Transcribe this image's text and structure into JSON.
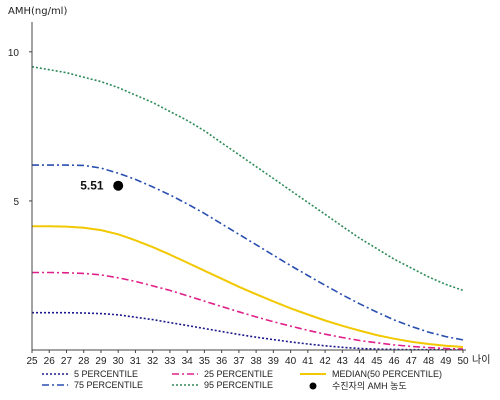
{
  "chart_data": {
    "type": "line",
    "ylabel": "AMH(ng/ml)",
    "xlabel": "나이",
    "xlim": [
      25,
      50
    ],
    "ylim": [
      0,
      11
    ],
    "ytick_labels": [
      "5",
      "10"
    ],
    "x": [
      25,
      26,
      27,
      28,
      29,
      30,
      31,
      32,
      33,
      34,
      35,
      36,
      37,
      38,
      39,
      40,
      41,
      42,
      43,
      44,
      45,
      46,
      47,
      48,
      49,
      50
    ],
    "series": [
      {
        "name": "5 PERCENTILE",
        "color": "#1a1a8c",
        "dash": "2,2",
        "values": [
          1.25,
          1.25,
          1.25,
          1.24,
          1.22,
          1.18,
          1.1,
          1.02,
          0.92,
          0.82,
          0.72,
          0.62,
          0.52,
          0.43,
          0.35,
          0.27,
          0.2,
          0.14,
          0.09,
          0.05,
          0.03,
          0.02,
          0.01,
          0.01,
          0.01,
          0.01
        ]
      },
      {
        "name": "25 PERCENTILE",
        "color": "#e0208a",
        "dash": "7,3,2,3",
        "values": [
          2.6,
          2.6,
          2.59,
          2.57,
          2.52,
          2.42,
          2.3,
          2.15,
          2.0,
          1.82,
          1.64,
          1.46,
          1.28,
          1.11,
          0.95,
          0.8,
          0.66,
          0.53,
          0.42,
          0.32,
          0.24,
          0.17,
          0.12,
          0.08,
          0.05,
          0.03
        ]
      },
      {
        "name": "MEDIAN(50 PERCENTILE)",
        "color": "#f2c800",
        "dash": "",
        "values": [
          4.15,
          4.15,
          4.14,
          4.1,
          4.02,
          3.88,
          3.68,
          3.45,
          3.2,
          2.93,
          2.66,
          2.39,
          2.12,
          1.87,
          1.63,
          1.4,
          1.19,
          0.99,
          0.81,
          0.65,
          0.5,
          0.38,
          0.28,
          0.2,
          0.14,
          0.1
        ]
      },
      {
        "name": "75 PERCENTILE",
        "color": "#2a4fb0",
        "dash": "7,3,2,3",
        "values": [
          6.2,
          6.2,
          6.2,
          6.19,
          6.1,
          5.93,
          5.72,
          5.47,
          5.2,
          4.9,
          4.58,
          4.23,
          3.88,
          3.53,
          3.18,
          2.83,
          2.5,
          2.17,
          1.85,
          1.55,
          1.27,
          1.01,
          0.79,
          0.6,
          0.45,
          0.34
        ]
      },
      {
        "name": "95 PERCENTILE",
        "color": "#2e8b57",
        "dash": "2,2",
        "values": [
          9.5,
          9.4,
          9.3,
          9.15,
          9.0,
          8.8,
          8.55,
          8.3,
          8.0,
          7.7,
          7.35,
          6.95,
          6.55,
          6.15,
          5.75,
          5.35,
          4.95,
          4.55,
          4.15,
          3.75,
          3.4,
          3.05,
          2.75,
          2.45,
          2.2,
          2.0
        ]
      }
    ],
    "marker": {
      "x": 30,
      "y": 5.51,
      "label": "5.51",
      "legend": "수진자의 AMH 농도",
      "color": "#000000"
    },
    "legend_position": "bottom"
  }
}
